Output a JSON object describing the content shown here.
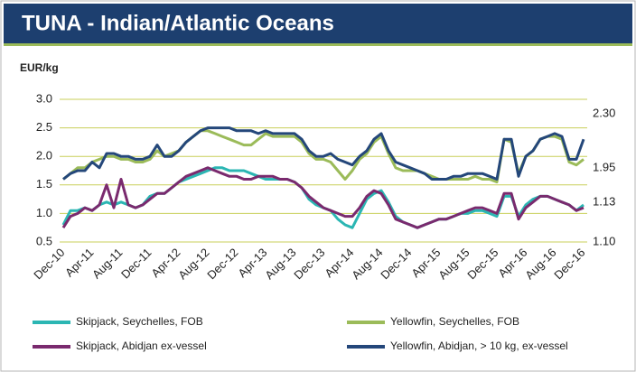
{
  "chart_data": {
    "type": "line",
    "title": "TUNA - Indian/Atlantic Oceans",
    "y_label": "EUR/kg",
    "categories": [
      "Dec-10",
      null,
      null,
      null,
      "Apr-11",
      null,
      null,
      null,
      "Aug-11",
      null,
      null,
      null,
      "Dec-11",
      null,
      null,
      null,
      "Apr-12",
      null,
      null,
      null,
      "Aug-12",
      null,
      null,
      null,
      "Dec-12",
      null,
      null,
      null,
      "Apr-13",
      null,
      null,
      null,
      "Aug-13",
      null,
      null,
      null,
      "Dec-13",
      null,
      null,
      null,
      "Apr-14",
      null,
      null,
      null,
      "Aug-14",
      null,
      null,
      null,
      "Dec-14",
      null,
      null,
      null,
      "Apr-15",
      null,
      null,
      null,
      "Aug-15",
      null,
      null,
      null,
      "Dec-15",
      null,
      null,
      null,
      "Apr-16",
      null,
      null,
      null,
      "Aug-16",
      null,
      null,
      null,
      "Dec-16"
    ],
    "series": [
      {
        "name": "Skipjack, Seychelles, FOB",
        "color": "#2bb6b3",
        "values": [
          0.8,
          1.05,
          1.05,
          1.1,
          1.05,
          1.15,
          1.2,
          1.15,
          1.2,
          1.15,
          1.1,
          1.15,
          1.3,
          1.35,
          1.35,
          1.45,
          1.55,
          1.6,
          1.65,
          1.7,
          1.75,
          1.8,
          1.8,
          1.75,
          1.75,
          1.75,
          1.7,
          1.65,
          1.6,
          1.6,
          1.6,
          1.6,
          1.55,
          1.45,
          1.25,
          1.15,
          1.1,
          1.05,
          0.9,
          0.8,
          0.75,
          1.0,
          1.25,
          1.35,
          1.4,
          1.2,
          0.95,
          0.85,
          0.8,
          0.75,
          0.8,
          0.85,
          0.9,
          0.9,
          0.95,
          1.0,
          1.0,
          1.05,
          1.05,
          1.0,
          0.95,
          1.3,
          1.3,
          0.95,
          1.15,
          1.25,
          1.3,
          1.3,
          1.25,
          1.2,
          1.15,
          1.05,
          1.15
        ]
      },
      {
        "name": "Yellowfin, Seychelles, FOB",
        "color": "#9bbb59",
        "values": [
          1.6,
          1.7,
          1.8,
          1.8,
          1.9,
          1.95,
          2.0,
          2.0,
          1.95,
          1.95,
          1.9,
          1.9,
          1.95,
          2.1,
          2.0,
          2.05,
          2.1,
          2.25,
          2.35,
          2.45,
          2.45,
          2.4,
          2.35,
          2.3,
          2.25,
          2.2,
          2.2,
          2.3,
          2.4,
          2.35,
          2.35,
          2.35,
          2.35,
          2.25,
          2.05,
          1.95,
          1.95,
          1.9,
          1.75,
          1.6,
          1.75,
          1.95,
          2.05,
          2.25,
          2.35,
          2.05,
          1.8,
          1.75,
          1.75,
          1.75,
          1.7,
          1.65,
          1.6,
          1.6,
          1.6,
          1.6,
          1.6,
          1.65,
          1.6,
          1.6,
          1.55,
          2.3,
          2.25,
          1.7,
          2.0,
          2.1,
          2.3,
          2.35,
          2.35,
          2.3,
          1.9,
          1.85,
          1.95
        ]
      },
      {
        "name": "Skipjack, Abidjan ex-vessel",
        "color": "#7a2a6e",
        "values": [
          0.75,
          0.95,
          1.0,
          1.1,
          1.05,
          1.15,
          1.5,
          1.1,
          1.6,
          1.15,
          1.1,
          1.15,
          1.25,
          1.35,
          1.35,
          1.45,
          1.55,
          1.65,
          1.7,
          1.75,
          1.8,
          1.75,
          1.7,
          1.65,
          1.65,
          1.6,
          1.6,
          1.65,
          1.65,
          1.65,
          1.6,
          1.6,
          1.55,
          1.45,
          1.3,
          1.2,
          1.1,
          1.05,
          1.0,
          0.95,
          0.95,
          1.1,
          1.3,
          1.4,
          1.35,
          1.15,
          0.9,
          0.85,
          0.8,
          0.75,
          0.8,
          0.85,
          0.9,
          0.9,
          0.95,
          1.0,
          1.05,
          1.1,
          1.1,
          1.05,
          1.0,
          1.35,
          1.35,
          0.9,
          1.1,
          1.2,
          1.3,
          1.3,
          1.25,
          1.2,
          1.15,
          1.05,
          1.1
        ]
      },
      {
        "name": "Yellowfin, Abidjan, > 10 kg, ex-vessel",
        "color": "#24477a",
        "values": [
          1.6,
          1.7,
          1.75,
          1.75,
          1.9,
          1.8,
          2.05,
          2.05,
          2.0,
          2.0,
          1.95,
          1.95,
          2.0,
          2.2,
          2.0,
          2.0,
          2.1,
          2.25,
          2.35,
          2.45,
          2.5,
          2.5,
          2.5,
          2.5,
          2.45,
          2.45,
          2.45,
          2.4,
          2.45,
          2.4,
          2.4,
          2.4,
          2.4,
          2.3,
          2.1,
          2.0,
          2.0,
          2.05,
          1.95,
          1.9,
          1.85,
          2.0,
          2.1,
          2.3,
          2.4,
          2.1,
          1.9,
          1.85,
          1.8,
          1.75,
          1.7,
          1.6,
          1.6,
          1.6,
          1.65,
          1.65,
          1.7,
          1.7,
          1.7,
          1.65,
          1.6,
          2.3,
          2.3,
          1.65,
          2.0,
          2.1,
          2.3,
          2.35,
          2.4,
          2.35,
          1.95,
          1.95,
          2.3
        ]
      }
    ],
    "annotations": [
      "2.30",
      "1.95",
      "1.13",
      "1.10"
    ],
    "ylim": [
      0.5,
      3.0
    ],
    "yticks": [
      {
        "value": 0.5,
        "label": "0.5"
      },
      {
        "value": 1.0,
        "label": "1.0"
      },
      {
        "value": 1.5,
        "label": "1.5"
      },
      {
        "value": 2.0,
        "label": "2.0"
      },
      {
        "value": 2.5,
        "label": "2.5"
      },
      {
        "value": 3.0,
        "label": "3.0"
      }
    ],
    "grid": true
  }
}
